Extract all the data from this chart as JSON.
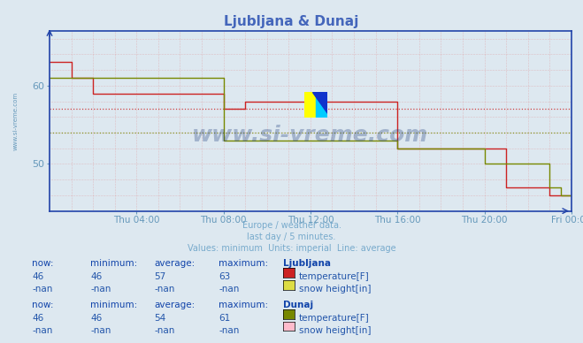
{
  "title": "Ljubljana & Dunaj",
  "title_color": "#4466bb",
  "bg_color": "#dde8f0",
  "plot_bg_color": "#dde8f0",
  "ylabel": "",
  "xlabel": "",
  "xlim": [
    0,
    288
  ],
  "ylim": [
    44,
    67
  ],
  "yticks": [
    50,
    60
  ],
  "xtick_labels": [
    "Thu 04:00",
    "Thu 08:00",
    "Thu 12:00",
    "Thu 16:00",
    "Thu 20:00",
    "Fri 00:00"
  ],
  "xtick_positions": [
    48,
    96,
    144,
    192,
    240,
    288
  ],
  "watermark": "www.si-vreme.com",
  "watermark_color": "#1a3a7a",
  "watermark_alpha": 0.3,
  "subtitle_lines": [
    "Europe / weather data.",
    "last day / 5 minutes.",
    "Values: minimum  Units: imperial  Line: average"
  ],
  "subtitle_color": "#77aacc",
  "lj_color": "#cc2222",
  "dunaj_color": "#778800",
  "lj_avg": 57,
  "dunaj_avg": 54,
  "lj_temp_x": [
    0,
    12,
    12,
    24,
    24,
    96,
    96,
    108,
    108,
    192,
    192,
    240,
    240,
    252,
    252,
    276,
    276,
    282,
    282,
    288
  ],
  "lj_temp_y": [
    63,
    63,
    61,
    61,
    59,
    59,
    57,
    57,
    58,
    58,
    52,
    52,
    52,
    47,
    47,
    47,
    46,
    46,
    46,
    46
  ],
  "dunaj_temp_x": [
    0,
    96,
    96,
    108,
    108,
    192,
    192,
    240,
    240,
    252,
    252,
    276,
    276,
    282,
    282,
    288
  ],
  "dunaj_temp_y": [
    61,
    61,
    53,
    53,
    53,
    53,
    52,
    52,
    50,
    50,
    50,
    47,
    47,
    46,
    46,
    46
  ],
  "table_text_color": "#2255aa",
  "table_bold_color": "#1144aa",
  "lj_now": "46",
  "lj_min": "46",
  "lj_avg_val": "57",
  "lj_max": "63",
  "lj_snow_now": "-nan",
  "lj_snow_min": "-nan",
  "lj_snow_avg": "-nan",
  "lj_snow_max": "-nan",
  "dunaj_now": "46",
  "dunaj_min": "46",
  "dunaj_avg_val": "54",
  "dunaj_max": "61",
  "dunaj_snow_now": "-nan",
  "dunaj_snow_min": "-nan",
  "dunaj_snow_avg": "-nan",
  "dunaj_snow_max": "-nan",
  "lj_temp_color": "#cc2222",
  "lj_snow_color": "#dddd44",
  "dunaj_temp_color": "#778800",
  "dunaj_snow_color": "#ffbbcc",
  "axis_color": "#2244aa",
  "tick_color": "#6699bb",
  "left_label": "www.si-vreme.com",
  "left_label_color": "#6699bb",
  "logo_yellow": "#ffff00",
  "logo_cyan": "#00ccff",
  "logo_blue": "#1133cc"
}
